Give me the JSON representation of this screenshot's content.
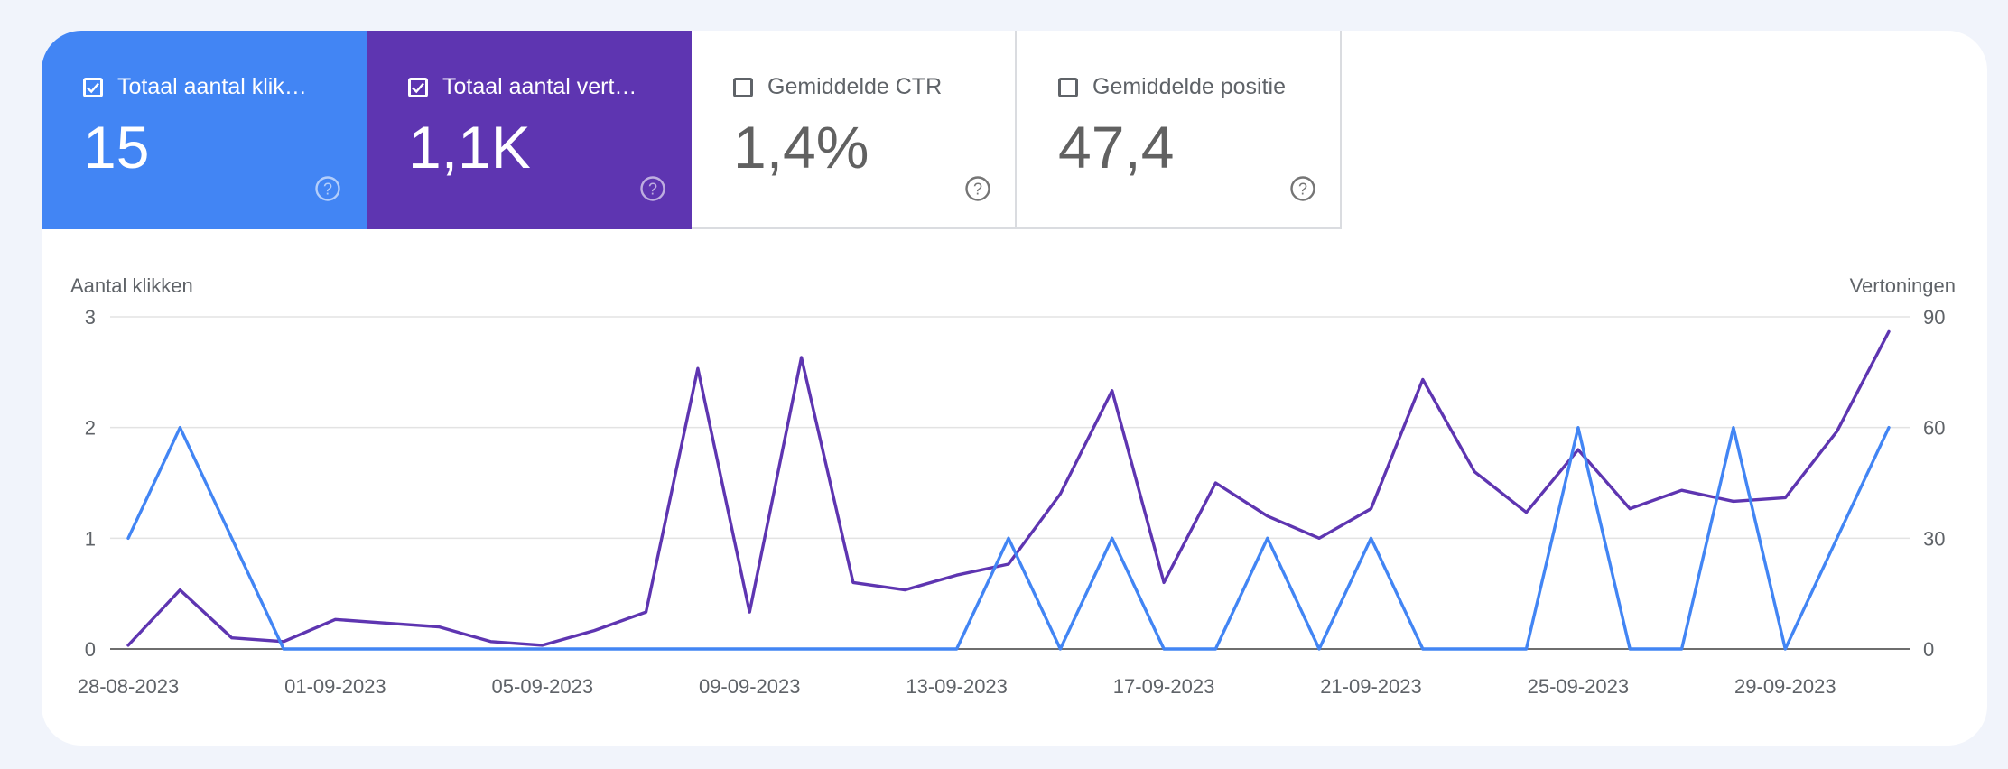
{
  "metrics": [
    {
      "label": "Totaal aantal klik…",
      "value": "15",
      "checked": true,
      "color": "#4285f4"
    },
    {
      "label": "Totaal aantal vert…",
      "value": "1,1K",
      "checked": true,
      "color": "#5e35b1"
    },
    {
      "label": "Gemiddelde CTR",
      "value": "1,4%",
      "checked": false,
      "color": "#ffffff"
    },
    {
      "label": "Gemiddelde positie",
      "value": "47,4",
      "checked": false,
      "color": "#ffffff"
    }
  ],
  "chart_data": {
    "type": "line",
    "ylabel_left": "Aantal klikken",
    "ylabel_right": "Vertoningen",
    "ylim_left": [
      0,
      3
    ],
    "ylim_right": [
      0,
      90
    ],
    "yticks_left": [
      "0",
      "1",
      "2",
      "3"
    ],
    "yticks_right": [
      "0",
      "30",
      "60",
      "90"
    ],
    "xtick_labels": [
      "28-08-2023",
      "01-09-2023",
      "05-09-2023",
      "09-09-2023",
      "13-09-2023",
      "17-09-2023",
      "21-09-2023",
      "25-09-2023",
      "29-09-2023"
    ],
    "x": [
      "28-08-2023",
      "29-08-2023",
      "30-08-2023",
      "31-08-2023",
      "01-09-2023",
      "02-09-2023",
      "03-09-2023",
      "04-09-2023",
      "05-09-2023",
      "06-09-2023",
      "07-09-2023",
      "08-09-2023",
      "09-09-2023",
      "10-09-2023",
      "11-09-2023",
      "12-09-2023",
      "13-09-2023",
      "14-09-2023",
      "15-09-2023",
      "16-09-2023",
      "17-09-2023",
      "18-09-2023",
      "19-09-2023",
      "20-09-2023",
      "21-09-2023",
      "22-09-2023",
      "23-09-2023",
      "24-09-2023",
      "25-09-2023",
      "26-09-2023",
      "27-09-2023",
      "28-09-2023",
      "29-09-2023",
      "30-09-2023",
      "01-10-2023"
    ],
    "series": [
      {
        "name": "Totaal aantal klikken",
        "axis": "left",
        "color": "#4285f4",
        "values": [
          1,
          2,
          1,
          0,
          0,
          0,
          0,
          0,
          0,
          0,
          0,
          0,
          0,
          0,
          0,
          0,
          0,
          1,
          0,
          1,
          0,
          0,
          1,
          0,
          1,
          0,
          0,
          0,
          2,
          0,
          0,
          2,
          0,
          1,
          2
        ]
      },
      {
        "name": "Totaal aantal vertoningen",
        "axis": "right",
        "color": "#5e35b1",
        "values": [
          1,
          16,
          3,
          2,
          8,
          7,
          6,
          2,
          1,
          5,
          10,
          76,
          10,
          79,
          18,
          16,
          20,
          23,
          42,
          70,
          18,
          45,
          36,
          30,
          38,
          73,
          48,
          37,
          54,
          38,
          43,
          40,
          41,
          59,
          86
        ]
      }
    ],
    "grid": true,
    "legend": "none"
  }
}
